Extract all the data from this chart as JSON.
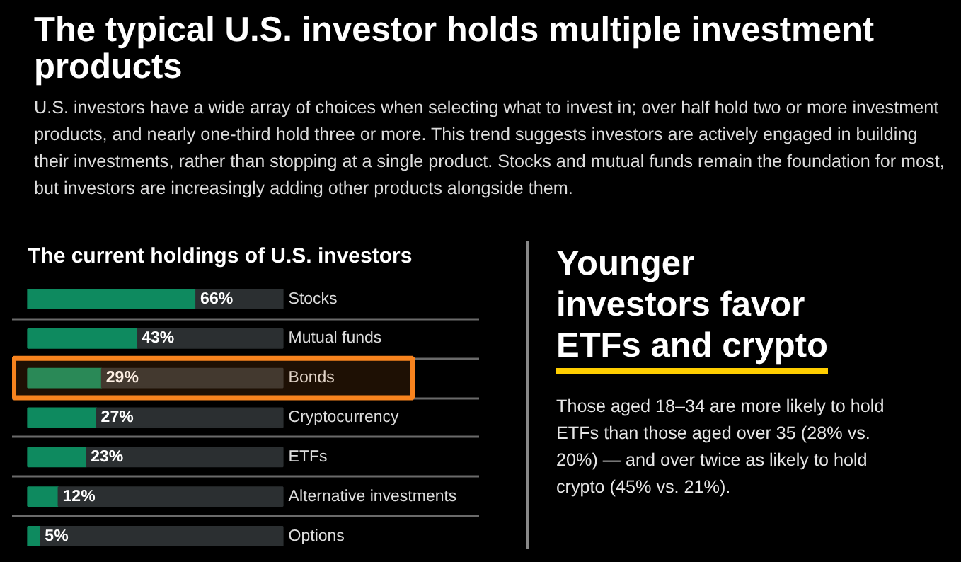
{
  "chart_data": [
    {
      "type": "other",
      "title": "The typical U.S. investor holds multiple investment products",
      "subtitle": "U.S. investors have a wide array of choices when selecting what to invest in; over half hold two or more investment products, and nearly one-third hold three or more. This trend suggests investors are actively engaged in building their investments, rather than stopping at a single product. Stocks and mutual funds remain the foundation for most, but investors are increasingly adding other products alongside them."
    },
    {
      "type": "bar",
      "orientation": "horizontal",
      "title": "The current holdings of U.S. investors",
      "categories": [
        "Stocks",
        "Mutual funds",
        "Bonds",
        "Cryptocurrency",
        "ETFs",
        "Alternative investments",
        "Options"
      ],
      "stacked": true,
      "series": [
        {
          "color": "#0e8a5f",
          "values": [
            66,
            43,
            29,
            27,
            23,
            12,
            5
          ],
          "value_labels": [
            "66%",
            "43%",
            "29%",
            "27%",
            "23%",
            "12%",
            "5%"
          ]
        },
        {
          "color": "#2b2f31",
          "values": [
            34,
            57,
            71,
            73,
            77,
            88,
            95
          ]
        }
      ],
      "grid": "y",
      "bands": [
        {
          "axis": "y",
          "from": "Bonds",
          "to": "Bonds",
          "color": "#f7831e"
        }
      ]
    },
    {
      "type": "other",
      "title": "Younger investors favor ETFs and crypto",
      "annotations": [
        "Those aged 18–34 are more likely to hold ETFs than those aged over 35 (28% vs. 20%) — and over twice as likely to hold crypto (45% vs. 21%)."
      ]
    }
  ]
}
